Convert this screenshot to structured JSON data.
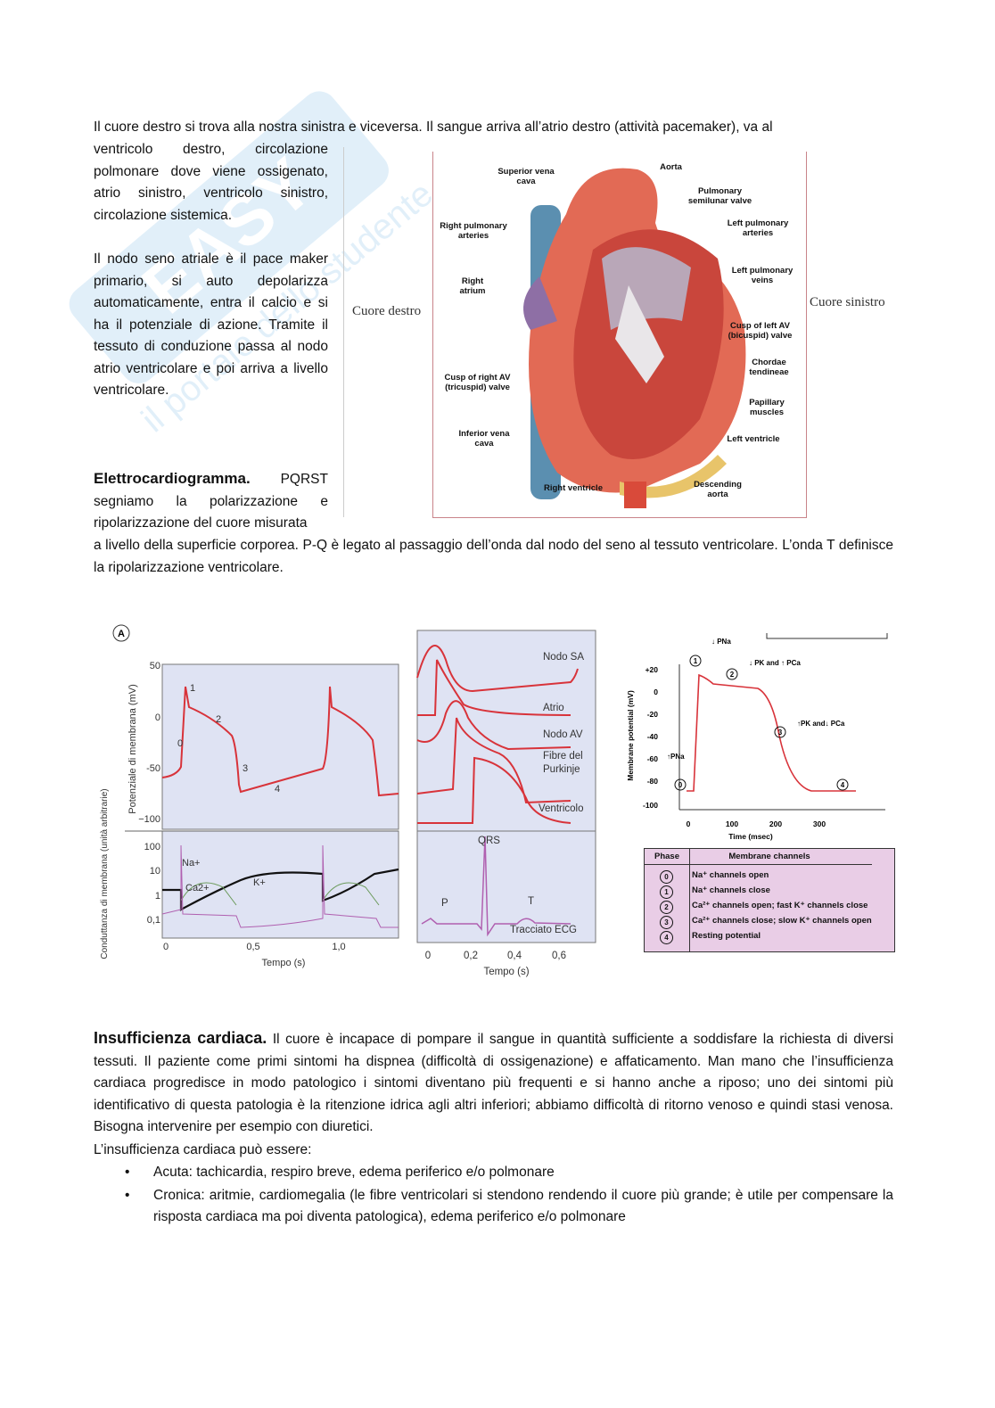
{
  "watermark": {
    "text": "Easy Appunti.it — il portale dello studente"
  },
  "intro": {
    "line1": "Il cuore destro si trova alla nostra sinistra e viceversa. Il sangue arriva all’atrio destro (attività pacemaker), va al",
    "para_rest": "ventricolo destro, circolazione polmonare dove viene ossigenato, atrio sinistro, ventricolo sinistro, circolazione sistemica.",
    "para2": "Il nodo seno atriale è il pace maker primario, si auto depolarizza automaticamente, entra il calcio e si ha il potenziale di azione. Tramite il tessuto di conduzione passa al nodo atrio ventricolare e poi arriva a livello ventricolare.",
    "ecg_heading": "Elettrocardiogramma.",
    "ecg_short": "PQRST segniamo la polarizzazione e ripolarizzazione del cuore misurata",
    "ecg_full": "a livello della superficie corporea. P-Q è legato al passaggio dell’onda dal nodo del seno al tessuto ventricolare.  L’onda T definisce la ripolarizzazione ventricolare."
  },
  "heart_figure": {
    "left_caption": "Cuore destro",
    "right_caption": "Cuore sinistro",
    "labels": [
      "Superior vena cava",
      "Aorta",
      "Pulmonary semilunar valve",
      "Left pulmonary arteries",
      "Right pulmonary arteries",
      "Left pulmonary veins",
      "Right atrium",
      "Cusp of left AV (bicuspid) valve",
      "Chordae tendineae",
      "Cusp of right AV (tricuspid) valve",
      "Papillary muscles",
      "Inferior vena cava",
      "Left ventricle",
      "Right ventricle",
      "Descending aorta"
    ]
  },
  "figure_a": {
    "badge": "A",
    "top_ylabel": "Potenziale di membrana (mV)",
    "top_yticks": [
      "50",
      "0",
      "-50",
      "−100"
    ],
    "phase_labels": [
      "0",
      "1",
      "2",
      "3",
      "4"
    ],
    "bottom_ylabel": "Conduttanza di membrana (unità arbitrarie)",
    "bottom_yticks": [
      "100",
      "10",
      "1",
      "0,1"
    ],
    "ion_labels": [
      "Na+",
      "Ca2+",
      "K+"
    ],
    "xticks": [
      "0",
      "0,5",
      "1,0"
    ],
    "xlabel": "Tempo (s)"
  },
  "figure_b": {
    "traces": [
      "Nodo SA",
      "Atrio",
      "Nodo AV",
      "Fibre del Purkinje",
      "Ventricolo"
    ],
    "ecg_labels": [
      "P",
      "QRS",
      "T"
    ],
    "ecg_caption": "Tracciato ECG",
    "xticks": [
      "0",
      "0,2",
      "0,4",
      "0,6"
    ],
    "xlabel": "Tempo (s)"
  },
  "figure_c": {
    "ylabel": "Membrane potential (mV)",
    "yticks": [
      "+20",
      "0",
      "-20",
      "-40",
      "-60",
      "-80",
      "-100"
    ],
    "xticks": [
      "0",
      "100",
      "200",
      "300"
    ],
    "xlabel": "Time (msec)",
    "annotations": [
      "↓ PNa",
      "↓ PK and ↑ PCa",
      "↑PK and↓ PCa",
      "↑PNa"
    ],
    "phase_markers": [
      "0",
      "1",
      "2",
      "3",
      "4"
    ],
    "table": {
      "headers": [
        "Phase",
        "Membrane channels"
      ],
      "rows": [
        {
          "phase": "0",
          "text": "Na⁺ channels open"
        },
        {
          "phase": "1",
          "text": "Na⁺ channels close"
        },
        {
          "phase": "2",
          "text": "Ca²⁺ channels open; fast K⁺ channels close"
        },
        {
          "phase": "3",
          "text": "Ca²⁺ channels close; slow K⁺ channels open"
        },
        {
          "phase": "4",
          "text": "Resting potential"
        }
      ]
    }
  },
  "insufficienza": {
    "heading": "Insufficienza cardiaca.",
    "first_line": " Il cuore è incapace di pompare il sangue in quantità sufficiente a soddisfare la richiesta di",
    "body": "diversi tessuti. Il paziente come primi sintomi ha dispnea (difficoltà di ossigenazione) e affaticamento. Man mano che l’insufficienza cardiaca progredisce in modo patologico i sintomi diventano più frequenti e si hanno anche a riposo; uno dei sintomi più identificativo di questa patologia è la ritenzione idrica agli altri inferiori; abbiamo difficoltà di ritorno venoso e quindi stasi venosa. Bisogna intervenire per esempio con diuretici.",
    "list_intro": "L’insufficienza cardiaca può essere:",
    "bullets": [
      "Acuta: tachicardia, respiro breve, edema periferico e/o polmonare",
      "Cronica: aritmie, cardiomegalia (le fibre ventricolari si stendono rendendo il cuore più grande; è utile per compensare la risposta cardiaca ma poi diventa patologica), edema periferico e/o polmonare"
    ]
  },
  "colors": {
    "trace_red": "#d8333a",
    "panel_blue": "#dfe3f3",
    "table_pink": "#e9cde6",
    "frame_red": "#c9848a"
  }
}
